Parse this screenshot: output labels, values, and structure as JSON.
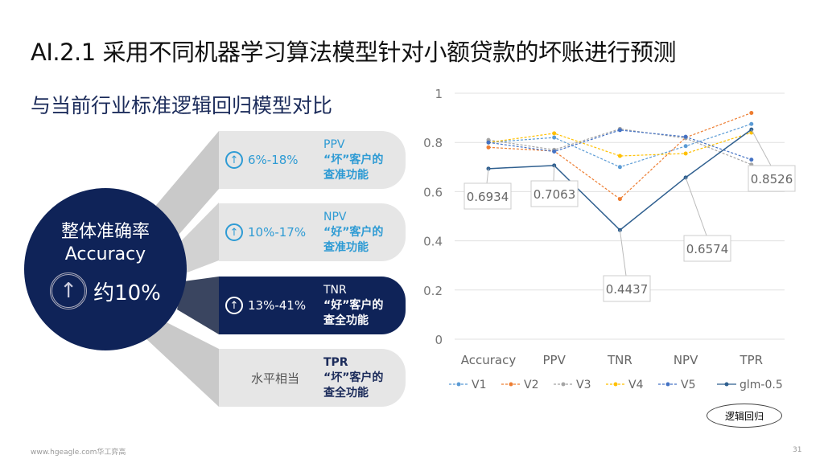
{
  "title": "AI.2.1 采用不同机器学习算法模型针对小额贷款的坏账进行预测",
  "subtitle": "与当前行业标准逻辑回归模型对比",
  "summary": {
    "line1": "整体准确率",
    "line2": "Accuracy",
    "line3": "约10%",
    "icon": "arrow-up-circle-icon"
  },
  "cards": [
    {
      "pct": "6%-18%",
      "metric": "PPV",
      "d2": "“坏”客户的",
      "d3": "查准功能",
      "style": "light"
    },
    {
      "pct": "10%-17%",
      "metric": "NPV",
      "d2": "“好”客户的",
      "d3": "查准功能",
      "style": "light"
    },
    {
      "pct": "13%-41%",
      "metric": "TNR",
      "d2": "“好”客户的",
      "d3": "查全功能",
      "style": "dark"
    },
    {
      "pct": "水平相当",
      "metric": "TPR",
      "d2": "“坏”客户的",
      "d3": "查全功能",
      "style": "gray"
    }
  ],
  "footer": "www.hgeagle.com华工弈高",
  "page_number": "31",
  "callout": "逻辑回归",
  "chart_data": {
    "type": "line",
    "categories": [
      "Accuracy",
      "PPV",
      "TNR",
      "NPV",
      "TPR"
    ],
    "ylim": [
      0,
      1
    ],
    "yticks": [
      "0",
      "0.2",
      "0.4",
      "0.6",
      "0.8",
      "1"
    ],
    "grid": true,
    "legend_position": "bottom",
    "series": [
      {
        "name": "V1",
        "color": "#5b9bd5",
        "dashed": true,
        "values": [
          0.8,
          0.82,
          0.7,
          0.785,
          0.875
        ]
      },
      {
        "name": "V2",
        "color": "#ed7d31",
        "dashed": true,
        "values": [
          0.78,
          0.765,
          0.57,
          0.82,
          0.92
        ]
      },
      {
        "name": "V3",
        "color": "#a5a5a5",
        "dashed": true,
        "values": [
          0.81,
          0.77,
          0.855,
          0.817,
          0.71
        ]
      },
      {
        "name": "V4",
        "color": "#ffc000",
        "dashed": true,
        "values": [
          0.8,
          0.837,
          0.745,
          0.755,
          0.84
        ]
      },
      {
        "name": "V5",
        "color": "#4472c4",
        "dashed": true,
        "values": [
          0.8,
          0.763,
          0.85,
          0.823,
          0.73
        ]
      },
      {
        "name": "glm-0.5",
        "color": "#2f5f8f",
        "dashed": false,
        "values": [
          0.6934,
          0.7063,
          0.4437,
          0.6574,
          0.8526
        ]
      }
    ],
    "data_labels": [
      "0.6934",
      "0.7063",
      "0.4437",
      "0.6574",
      "0.8526"
    ]
  }
}
